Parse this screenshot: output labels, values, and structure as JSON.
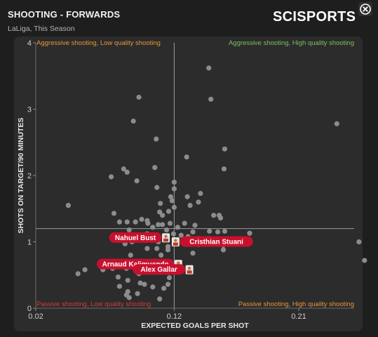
{
  "header": {
    "title": "SHOOTING - FORWARDS",
    "subtitle": "LaLiga, This Season",
    "brand": "SCISPORTS"
  },
  "colors": {
    "background": "#1e1e1e",
    "panel": "#2c2c2c",
    "point": "#8c8c8c",
    "reference_line": "#9a9a9a",
    "label_red": "#c8102e",
    "quadrant_top_left": "#e8953a",
    "quadrant_top_right": "#7fbf5f",
    "quadrant_bottom_left": "#d83a3a",
    "quadrant_bottom_right": "#e8953a"
  },
  "chart_data": {
    "type": "scatter",
    "xlabel": "EXPECTED GOALS PER SHOT",
    "ylabel": "SHOTS ON TARGET/90 MINUTES",
    "xlim": [
      0.02,
      0.25
    ],
    "ylim": [
      0,
      4
    ],
    "x_ticks": [
      0.02,
      0.12,
      0.21
    ],
    "x_tick_labels": [
      "0.02",
      "0.12",
      "0.21"
    ],
    "y_ticks": [
      0,
      1,
      2,
      3,
      4
    ],
    "y_tick_labels": [
      "0",
      "1",
      "2",
      "3",
      "4"
    ],
    "reference_lines": {
      "x": 0.12,
      "y": 1.2
    },
    "grid": false,
    "quadrants": {
      "top_left": "Aggressive shooting, Low quality shooting",
      "top_right": "Aggressive shooting, High quality shooting",
      "bottom_left": "Passive shooting, Low quality shooting",
      "bottom_right": "Passive shooting, High quality shooting"
    },
    "points": [
      {
        "x": 0.145,
        "y": 3.62
      },
      {
        "x": 0.0945,
        "y": 3.18
      },
      {
        "x": 0.1465,
        "y": 3.15
      },
      {
        "x": 0.0905,
        "y": 2.82
      },
      {
        "x": 0.2375,
        "y": 2.78
      },
      {
        "x": 0.107,
        "y": 2.55
      },
      {
        "x": 0.1565,
        "y": 2.4
      },
      {
        "x": 0.129,
        "y": 2.28
      },
      {
        "x": 0.0835,
        "y": 2.1
      },
      {
        "x": 0.086,
        "y": 2.05
      },
      {
        "x": 0.106,
        "y": 2.12
      },
      {
        "x": 0.156,
        "y": 2.1
      },
      {
        "x": 0.0745,
        "y": 1.98
      },
      {
        "x": 0.093,
        "y": 1.92
      },
      {
        "x": 0.12,
        "y": 1.9
      },
      {
        "x": 0.1075,
        "y": 1.82
      },
      {
        "x": 0.12,
        "y": 1.8
      },
      {
        "x": 0.139,
        "y": 1.73
      },
      {
        "x": 0.1175,
        "y": 1.68
      },
      {
        "x": 0.1295,
        "y": 1.68
      },
      {
        "x": 0.1185,
        "y": 1.62
      },
      {
        "x": 0.1375,
        "y": 1.6
      },
      {
        "x": 0.0435,
        "y": 1.55
      },
      {
        "x": 0.11,
        "y": 1.58
      },
      {
        "x": 0.1315,
        "y": 1.55
      },
      {
        "x": 0.12,
        "y": 1.52
      },
      {
        "x": 0.1095,
        "y": 1.45
      },
      {
        "x": 0.116,
        "y": 1.46
      },
      {
        "x": 0.0765,
        "y": 1.43
      },
      {
        "x": 0.1115,
        "y": 1.4
      },
      {
        "x": 0.1485,
        "y": 1.4
      },
      {
        "x": 0.1525,
        "y": 1.4
      },
      {
        "x": 0.1535,
        "y": 1.36
      },
      {
        "x": 0.0965,
        "y": 1.34
      },
      {
        "x": 0.1005,
        "y": 1.32
      },
      {
        "x": 0.0805,
        "y": 1.3
      },
      {
        "x": 0.086,
        "y": 1.3
      },
      {
        "x": 0.092,
        "y": 1.3
      },
      {
        "x": 0.101,
        "y": 1.28
      },
      {
        "x": 0.117,
        "y": 1.28
      },
      {
        "x": 0.1275,
        "y": 1.28
      },
      {
        "x": 0.1085,
        "y": 1.26
      },
      {
        "x": 0.1115,
        "y": 1.26
      },
      {
        "x": 0.1225,
        "y": 1.22
      },
      {
        "x": 0.135,
        "y": 1.25
      },
      {
        "x": 0.1045,
        "y": 1.22
      },
      {
        "x": 0.1145,
        "y": 1.18
      },
      {
        "x": 0.0875,
        "y": 1.18
      },
      {
        "x": 0.1335,
        "y": 1.15
      },
      {
        "x": 0.1455,
        "y": 1.16
      },
      {
        "x": 0.1515,
        "y": 1.15
      },
      {
        "x": 0.1565,
        "y": 1.16
      },
      {
        "x": 0.1745,
        "y": 1.13
      },
      {
        "x": 0.1005,
        "y": 1.12
      },
      {
        "x": 0.1195,
        "y": 1.12
      },
      {
        "x": 0.125,
        "y": 1.1
      },
      {
        "x": 0.13,
        "y": 1.08
      },
      {
        "x": 0.108,
        "y": 1.06
      },
      {
        "x": 0.1375,
        "y": 1.05
      },
      {
        "x": 0.145,
        "y": 1.05
      },
      {
        "x": 0.0895,
        "y": 1.0
      },
      {
        "x": 0.1085,
        "y": 1.0
      },
      {
        "x": 0.1205,
        "y": 1.0
      },
      {
        "x": 0.1525,
        "y": 1.0
      },
      {
        "x": 0.2535,
        "y": 1.0
      },
      {
        "x": 0.0845,
        "y": 0.97
      },
      {
        "x": 0.1275,
        "y": 0.97
      },
      {
        "x": 0.1375,
        "y": 0.96
      },
      {
        "x": 0.1555,
        "y": 0.95
      },
      {
        "x": 0.1155,
        "y": 0.93
      },
      {
        "x": 0.1005,
        "y": 0.9
      },
      {
        "x": 0.1075,
        "y": 0.9
      },
      {
        "x": 0.1155,
        "y": 0.88
      },
      {
        "x": 0.1555,
        "y": 0.88
      },
      {
        "x": 0.1335,
        "y": 0.83
      },
      {
        "x": 0.0885,
        "y": 0.8
      },
      {
        "x": 0.1105,
        "y": 0.8
      },
      {
        "x": 0.2575,
        "y": 0.72
      },
      {
        "x": 0.0775,
        "y": 0.7
      },
      {
        "x": 0.0855,
        "y": 0.7
      },
      {
        "x": 0.1055,
        "y": 0.7
      },
      {
        "x": 0.1135,
        "y": 0.7
      },
      {
        "x": 0.1235,
        "y": 0.66
      },
      {
        "x": 0.0975,
        "y": 0.62
      },
      {
        "x": 0.0755,
        "y": 0.6
      },
      {
        "x": 0.0855,
        "y": 0.6
      },
      {
        "x": 0.1085,
        "y": 0.6
      },
      {
        "x": 0.0555,
        "y": 0.58
      },
      {
        "x": 0.0685,
        "y": 0.58
      },
      {
        "x": 0.0505,
        "y": 0.52
      },
      {
        "x": 0.0945,
        "y": 0.52
      },
      {
        "x": 0.1215,
        "y": 0.58
      },
      {
        "x": 0.0795,
        "y": 0.47
      },
      {
        "x": 0.1165,
        "y": 0.46
      },
      {
        "x": 0.0865,
        "y": 0.42
      },
      {
        "x": 0.0955,
        "y": 0.38
      },
      {
        "x": 0.0985,
        "y": 0.36
      },
      {
        "x": 0.1155,
        "y": 0.36
      },
      {
        "x": 0.0805,
        "y": 0.33
      },
      {
        "x": 0.1045,
        "y": 0.32
      },
      {
        "x": 0.1125,
        "y": 0.3
      },
      {
        "x": 0.0865,
        "y": 0.25
      },
      {
        "x": 0.0935,
        "y": 0.22
      },
      {
        "x": 0.0855,
        "y": 0.2
      },
      {
        "x": 0.0875,
        "y": 0.16
      },
      {
        "x": 0.1095,
        "y": 0.14
      }
    ],
    "highlighted_players": [
      {
        "name": "Nahuel Bust",
        "x": 0.114,
        "y": 1.06,
        "anchor": "end"
      },
      {
        "name": "Cristhian Stuani",
        "x": 0.121,
        "y": 1.0,
        "anchor": "start"
      },
      {
        "name": "Arnaud Kalimuendo",
        "x": 0.123,
        "y": 0.66,
        "anchor": "end"
      },
      {
        "name": "Alex Gallar",
        "x": 0.131,
        "y": 0.58,
        "anchor": "end"
      }
    ]
  }
}
